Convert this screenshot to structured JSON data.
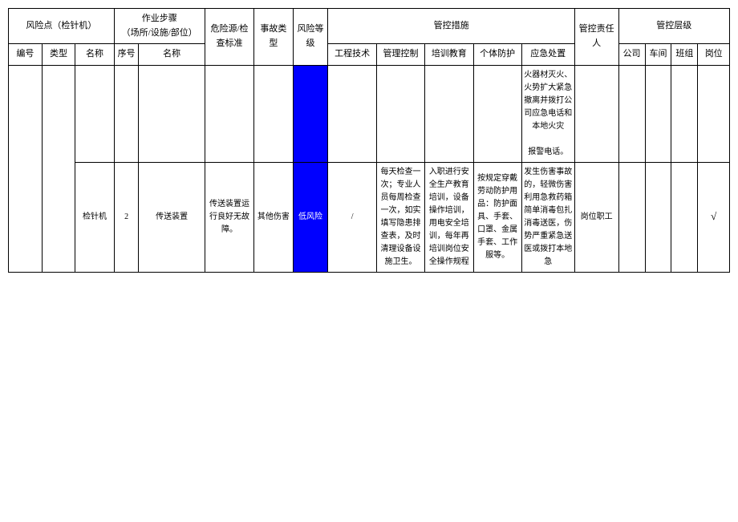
{
  "colors": {
    "low_risk_bg": "#0000ff",
    "low_risk_text": "#ffffff",
    "border": "#000000",
    "background": "#ffffff"
  },
  "header": {
    "risk_point": "风险点（检针机）",
    "work_step": "作业步骤\n（场所/设施/部位）",
    "hazard_source": "危险源/检查标准",
    "accident_type": "事故类型",
    "risk_level": "风险等级",
    "control_measures": "管控措施",
    "control_person": "管控责任人",
    "control_level": "管控层级",
    "number": "编号",
    "type": "类型",
    "name": "名称",
    "seq": "序号",
    "name2": "名称",
    "engineering": "工程技术",
    "management": "管理控制",
    "training": "培训教育",
    "ppe": "个体防护",
    "emergency": "应急处置",
    "company": "公司",
    "workshop": "车间",
    "team": "班组",
    "position": "岗位"
  },
  "rows": [
    {
      "emergency": "火器材灭火、火势扩大紧急撤离并拨打公司应急电话和本地火灾\n\n报警电话。"
    },
    {
      "name": "检针机",
      "seq": "2",
      "step_name": "传送装置",
      "hazard": "传送装置运行良好无故障。",
      "accident_type": "其他伤害",
      "risk_level": "低风险",
      "engineering": "/",
      "management": "每天检查一次；专业人员每周检查一次，如实填写隐患排查表，及时清理设备设施卫生。",
      "training": "入职进行安全生产教育培训，设备操作培训，用电安全培训，每年再培训岗位安全操作规程",
      "ppe": "按规定穿戴劳动防护用品：防护面具、手套、口罩、金属手套、工作服等。",
      "emergency": "发生伤害事故的，轻微伤害利用急救药箱简单消毒包扎消毒送医，伤势严重紧急送医或拨打本地急",
      "control_person": "岗位职工",
      "position_check": "√"
    }
  ]
}
